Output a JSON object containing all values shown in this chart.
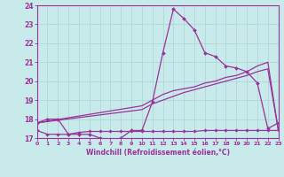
{
  "xlabel": "Windchill (Refroidissement éolien,°C)",
  "xlim": [
    0,
    23
  ],
  "ylim": [
    17,
    24
  ],
  "yticks": [
    17,
    18,
    19,
    20,
    21,
    22,
    23,
    24
  ],
  "xticks": [
    0,
    1,
    2,
    3,
    4,
    5,
    6,
    7,
    8,
    9,
    10,
    11,
    12,
    13,
    14,
    15,
    16,
    17,
    18,
    19,
    20,
    21,
    22,
    23
  ],
  "bg_color": "#c8eaea",
  "line_color": "#993399",
  "grid_color": "#aad4d4",
  "line1_x": [
    0,
    1,
    2,
    3,
    4,
    5,
    6,
    7,
    8,
    9,
    10,
    11,
    12,
    13,
    14,
    15,
    16,
    17,
    18,
    19,
    20,
    21,
    22,
    23
  ],
  "line1_y": [
    17.8,
    18.0,
    18.0,
    17.2,
    17.2,
    17.2,
    17.0,
    16.85,
    17.0,
    17.4,
    17.4,
    18.9,
    21.5,
    23.8,
    23.3,
    22.7,
    21.5,
    21.3,
    20.8,
    20.7,
    20.5,
    19.9,
    17.5,
    17.8
  ],
  "line2_x": [
    0,
    10,
    11,
    12,
    13,
    14,
    15,
    16,
    17,
    18,
    19,
    20,
    21,
    22,
    23
  ],
  "line2_y": [
    17.8,
    18.7,
    19.0,
    19.3,
    19.5,
    19.6,
    19.7,
    19.9,
    20.0,
    20.2,
    20.3,
    20.5,
    20.8,
    21.0,
    17.4
  ],
  "line3_x": [
    0,
    10,
    11,
    12,
    13,
    14,
    15,
    16,
    17,
    18,
    19,
    20,
    21,
    22,
    23
  ],
  "line3_y": [
    17.8,
    18.5,
    18.8,
    19.0,
    19.2,
    19.4,
    19.55,
    19.7,
    19.85,
    20.0,
    20.15,
    20.3,
    20.5,
    20.65,
    17.4
  ],
  "line4_x": [
    0,
    1,
    2,
    3,
    4,
    5,
    6,
    7,
    8,
    9,
    10,
    11,
    12,
    13,
    14,
    15,
    16,
    17,
    18,
    19,
    20,
    21,
    22,
    23
  ],
  "line4_y": [
    17.4,
    17.2,
    17.2,
    17.2,
    17.3,
    17.35,
    17.35,
    17.35,
    17.35,
    17.35,
    17.35,
    17.35,
    17.35,
    17.35,
    17.35,
    17.35,
    17.4,
    17.4,
    17.4,
    17.4,
    17.4,
    17.4,
    17.4,
    17.4
  ]
}
